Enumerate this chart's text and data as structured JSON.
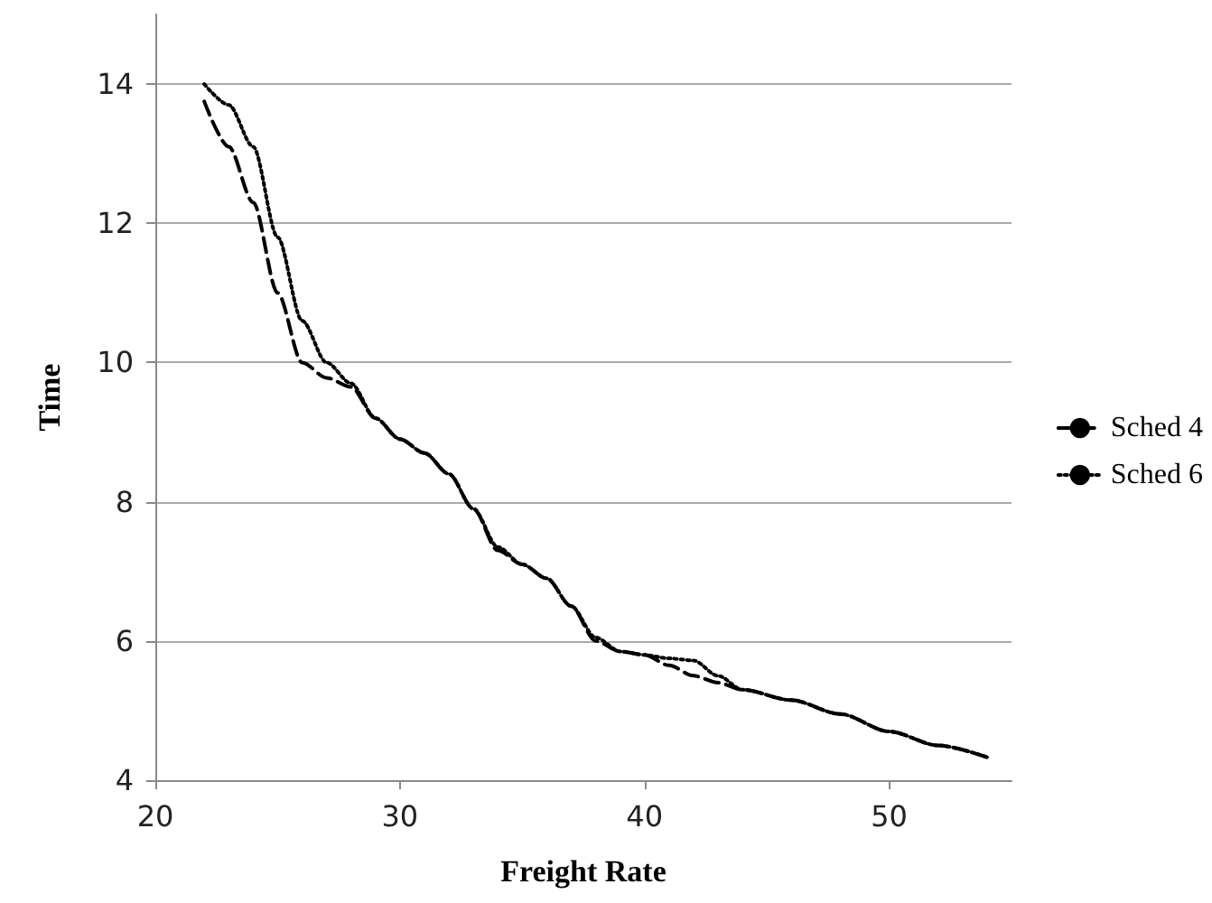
{
  "chart_data": {
    "type": "line",
    "xlabel": "Freight Rate",
    "ylabel": "Time",
    "xlim": [
      20,
      55
    ],
    "xticks": [
      20,
      30,
      40,
      50
    ],
    "ylim": [
      4,
      15
    ],
    "yticks": [
      4,
      6,
      8,
      10,
      12,
      14
    ],
    "grid": "y",
    "legend": "right",
    "marker": "none",
    "series": [
      {
        "name": "Sched 4",
        "color": "#000000",
        "line_style": "dashed",
        "x": [
          22,
          23,
          24,
          25,
          26,
          27,
          28,
          29,
          30,
          31,
          32,
          33,
          34,
          35,
          36,
          37,
          38,
          39,
          40,
          41,
          42,
          43,
          44,
          46,
          48,
          50,
          52,
          54
        ],
        "values": [
          13.75,
          13.1,
          12.3,
          11.0,
          10.0,
          9.78,
          9.65,
          9.2,
          8.9,
          8.7,
          8.4,
          7.9,
          7.3,
          7.1,
          6.9,
          6.5,
          6.0,
          5.85,
          5.8,
          5.65,
          5.5,
          5.4,
          5.3,
          5.15,
          4.95,
          4.7,
          4.5,
          4.33
        ]
      },
      {
        "name": "Sched 6",
        "color": "#000000",
        "line_style": "dotted",
        "x": [
          22,
          23,
          24,
          25,
          26,
          27,
          28,
          29,
          30,
          31,
          32,
          33,
          34,
          35,
          36,
          37,
          38,
          39,
          40,
          41,
          42,
          43,
          44,
          46,
          48,
          50,
          52,
          54
        ],
        "values": [
          14.0,
          13.7,
          13.1,
          11.8,
          10.6,
          10.0,
          9.7,
          9.2,
          8.9,
          8.7,
          8.4,
          7.9,
          7.35,
          7.1,
          6.9,
          6.5,
          6.05,
          5.85,
          5.8,
          5.75,
          5.72,
          5.5,
          5.3,
          5.15,
          4.95,
          4.7,
          4.5,
          4.33
        ]
      }
    ]
  }
}
